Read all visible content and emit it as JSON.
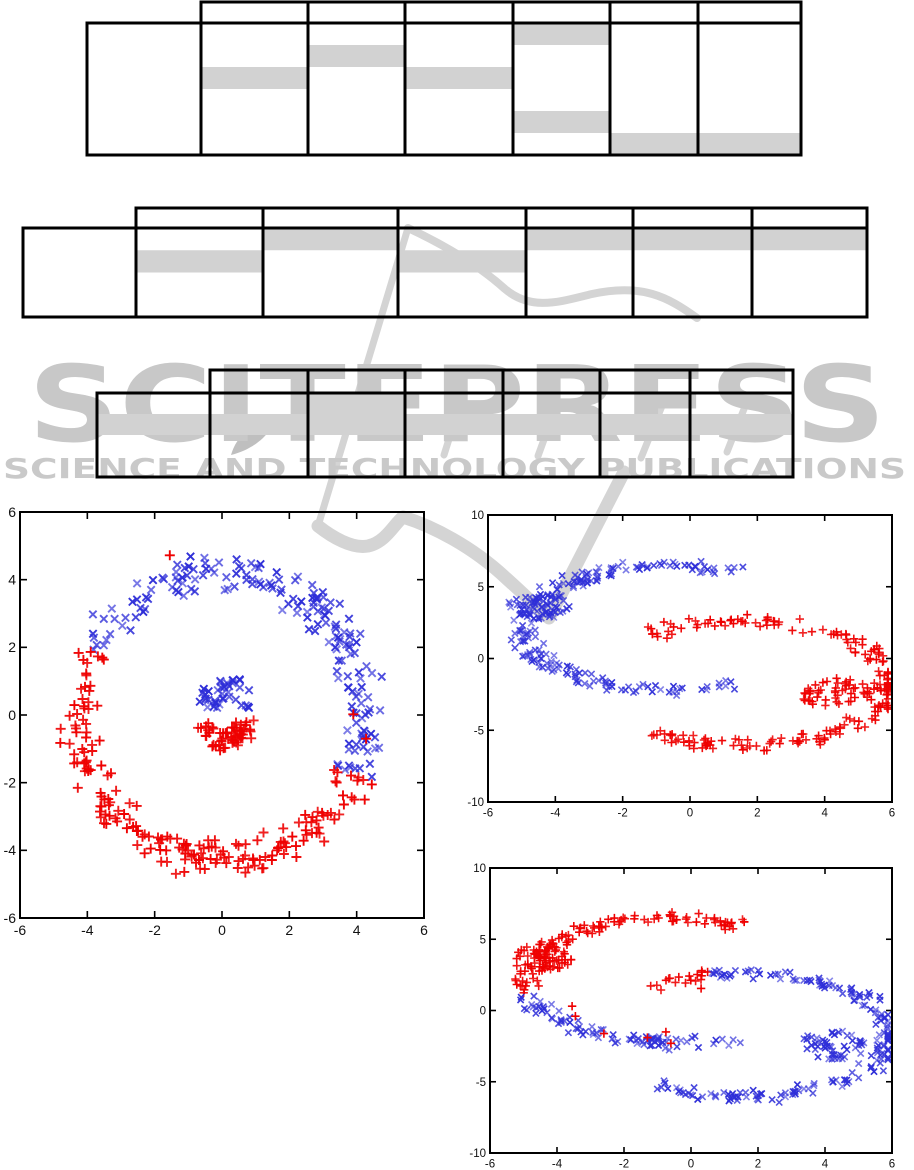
{
  "watermark": {
    "logo_text": "SCITEPRESS",
    "subtitle_text": "SCIENCE AND TECHNOLOGY PUBLICATIONS",
    "logo_color": "#c8c8c8",
    "subtitle_color": "#c9c9c9",
    "swoosh_color": "#d4d4d4"
  },
  "tables": [
    {
      "name": "results-table-1",
      "columns": 6,
      "rows": 6,
      "header_row": true,
      "label_column": true,
      "cells_have_text": false,
      "shade_color": "#d2d2d2",
      "shaded_cells": [
        {
          "col": 1,
          "row": 3
        },
        {
          "col": 2,
          "row": 2
        },
        {
          "col": 3,
          "row": 3
        },
        {
          "col": 4,
          "row": 1
        },
        {
          "col": 4,
          "row": 5
        },
        {
          "col": 5,
          "row": 6
        },
        {
          "col": 6,
          "row": 6
        }
      ],
      "shaded_rows": []
    },
    {
      "name": "results-table-2",
      "columns": 6,
      "rows": 4,
      "header_row": true,
      "label_column": true,
      "cells_have_text": false,
      "shade_color": "#d2d2d2",
      "shaded_cells": [
        {
          "col": 1,
          "row": 2
        },
        {
          "col": 2,
          "row": 1
        },
        {
          "col": 3,
          "row": 2
        },
        {
          "col": 4,
          "row": 1
        },
        {
          "col": 5,
          "row": 1
        },
        {
          "col": 6,
          "row": 1
        }
      ],
      "shaded_rows": []
    },
    {
      "name": "results-table-3",
      "columns": 6,
      "rows": 4,
      "header_row": true,
      "label_column": true,
      "cells_have_text": false,
      "shade_color": "#d2d2d2",
      "shaded_cells": [
        {
          "col": 2,
          "row": 1
        }
      ],
      "shaded_rows": [
        2
      ]
    }
  ],
  "chart_data": [
    {
      "id": "circles",
      "type": "scatter",
      "title": "",
      "xlabel": "",
      "ylabel": "",
      "xlim": [
        -6,
        6
      ],
      "ylim": [
        -6,
        6
      ],
      "xticks": [
        -6,
        -4,
        -2,
        0,
        2,
        4,
        6
      ],
      "yticks": [
        -6,
        -4,
        -2,
        0,
        2,
        4,
        6
      ],
      "grid": false,
      "legend": null,
      "series": [
        {
          "name": "class-blue",
          "marker": "x",
          "color": "#2e2ed8",
          "opacity_base": 0.6,
          "opacity_range": 0.4
        },
        {
          "name": "class-red",
          "marker": "+",
          "color": "#ee0000",
          "opacity_base": 0.85,
          "opacity_range": 0.15
        }
      ],
      "clusters": [
        {
          "desc": "outer ring upper arc (blue)",
          "shape": "ring",
          "cx": 0,
          "cy": 0,
          "r": 4.25,
          "jr": 0.7,
          "theta": [
            -24,
            154
          ],
          "count": 185,
          "series": 0,
          "seed": 11
        },
        {
          "desc": "outer ring lower arc (red)",
          "shape": "ring",
          "cx": 0,
          "cy": 0,
          "r": 4.3,
          "jr": 0.7,
          "theta": [
            154,
            336
          ],
          "count": 195,
          "series": 1,
          "seed": 22
        },
        {
          "desc": "inner blob upper (blue)",
          "shape": "ring",
          "cx": 0.1,
          "cy": 0.28,
          "r": 0.55,
          "jr": 0.42,
          "theta": [
            -15,
            195
          ],
          "count": 40,
          "series": 0,
          "seed": 33
        },
        {
          "desc": "inner blob lower (red)",
          "shape": "ring",
          "cx": 0.1,
          "cy": -0.3,
          "r": 0.55,
          "jr": 0.45,
          "theta": [
            165,
            375
          ],
          "count": 55,
          "series": 1,
          "seed": 44
        }
      ],
      "outliers": [
        {
          "x": -1.55,
          "y": 4.72,
          "series": 1
        },
        {
          "x": 3.9,
          "y": 0.02,
          "series": 1
        },
        {
          "x": 4.28,
          "y": -0.7,
          "series": 1
        },
        {
          "x": 4.45,
          "y": -2.05,
          "series": 1
        }
      ]
    },
    {
      "id": "moonsA",
      "type": "scatter",
      "title": "",
      "xlabel": "",
      "ylabel": "",
      "xlim": [
        -6,
        6
      ],
      "ylim": [
        -10,
        10
      ],
      "xticks": [
        -6,
        -4,
        -2,
        0,
        2,
        4,
        6
      ],
      "yticks": [
        -10,
        -5,
        0,
        5,
        10
      ],
      "grid": false,
      "legend": null,
      "series": [
        {
          "name": "moon-upper-blue",
          "marker": "x",
          "color": "#2e2ed8",
          "opacity_base": 0.55,
          "opacity_range": 0.45
        },
        {
          "name": "moon-lower-red",
          "marker": "+",
          "color": "#ee0000",
          "opacity_base": 0.85,
          "opacity_range": 0.15
        }
      ],
      "clusters": [
        {
          "desc": "upper-left C moon (blue)",
          "shape": "ring",
          "cx": -0.6,
          "cy": 2.1,
          "r": 4.35,
          "jr": 0.55,
          "theta": [
            62,
            296
          ],
          "count": 200,
          "series": 0,
          "seed": 101
        },
        {
          "desc": "dense blob left (blue)",
          "shape": "disk",
          "cx": -4.5,
          "cy": 3.7,
          "r": 0.95,
          "count": 55,
          "series": 0,
          "seed": 102
        },
        {
          "desc": "lower-right C moon (red)",
          "shape": "ring",
          "cx": 1.6,
          "cy": -1.7,
          "r": 4.35,
          "jr": 0.55,
          "theta": [
            -128,
            130
          ],
          "count": 200,
          "series": 1,
          "seed": 103
        },
        {
          "desc": "dense blob right (red)",
          "shape": "disk",
          "cx": 4.3,
          "cy": -2.4,
          "r": 1.05,
          "count": 50,
          "series": 1,
          "seed": 104
        }
      ],
      "outliers": []
    },
    {
      "id": "moonsB",
      "type": "scatter",
      "title": "",
      "xlabel": "",
      "ylabel": "",
      "xlim": [
        -6,
        6
      ],
      "ylim": [
        -10,
        10
      ],
      "xticks": [
        -6,
        -4,
        -2,
        0,
        2,
        4,
        6
      ],
      "yticks": [
        -10,
        -5,
        0,
        5,
        10
      ],
      "grid": false,
      "legend": null,
      "series": [
        {
          "name": "classified-blue",
          "marker": "x",
          "color": "#2e2ed8",
          "opacity_base": 0.55,
          "opacity_range": 0.45
        },
        {
          "name": "classified-red",
          "marker": "+",
          "color": "#ee0000",
          "opacity_base": 0.85,
          "opacity_range": 0.15
        }
      ],
      "clusters": [
        {
          "desc": "upper moon top arc (red)",
          "shape": "ring",
          "cx": -0.6,
          "cy": 2.1,
          "r": 4.35,
          "jr": 0.55,
          "theta": [
            62,
            192
          ],
          "count": 115,
          "series": 1,
          "seed": 201
        },
        {
          "desc": "upper moon lower arm (blue)",
          "shape": "ring",
          "cx": -0.6,
          "cy": 2.1,
          "r": 4.35,
          "jr": 0.55,
          "theta": [
            192,
            296
          ],
          "count": 85,
          "series": 0,
          "seed": 202
        },
        {
          "desc": "dense blob left (red)",
          "shape": "disk",
          "cx": -4.5,
          "cy": 3.7,
          "r": 0.95,
          "count": 55,
          "series": 1,
          "seed": 203
        },
        {
          "desc": "lower moon tip (red)",
          "shape": "ring",
          "cx": 1.6,
          "cy": -1.7,
          "r": 4.35,
          "jr": 0.55,
          "theta": [
            104,
            130
          ],
          "count": 18,
          "series": 1,
          "seed": 204
        },
        {
          "desc": "lower moon main (blue)",
          "shape": "ring",
          "cx": 1.6,
          "cy": -1.7,
          "r": 4.35,
          "jr": 0.55,
          "theta": [
            -128,
            104
          ],
          "count": 182,
          "series": 0,
          "seed": 205
        },
        {
          "desc": "dense blob right (blue)",
          "shape": "disk",
          "cx": 4.3,
          "cy": -2.4,
          "r": 1.05,
          "count": 50,
          "series": 0,
          "seed": 206
        }
      ],
      "outliers": [
        {
          "x": -3.55,
          "y": 0.3,
          "series": 1
        },
        {
          "x": -3.45,
          "y": -0.4,
          "series": 1
        },
        {
          "x": -2.6,
          "y": -1.62,
          "series": 1
        },
        {
          "x": -0.75,
          "y": -1.5,
          "series": 1
        },
        {
          "x": -0.6,
          "y": -2.3,
          "series": 1
        },
        {
          "x": -1.3,
          "y": -1.9,
          "series": 1
        },
        {
          "x": 0.3,
          "y": 1.55,
          "series": 1
        }
      ]
    }
  ]
}
